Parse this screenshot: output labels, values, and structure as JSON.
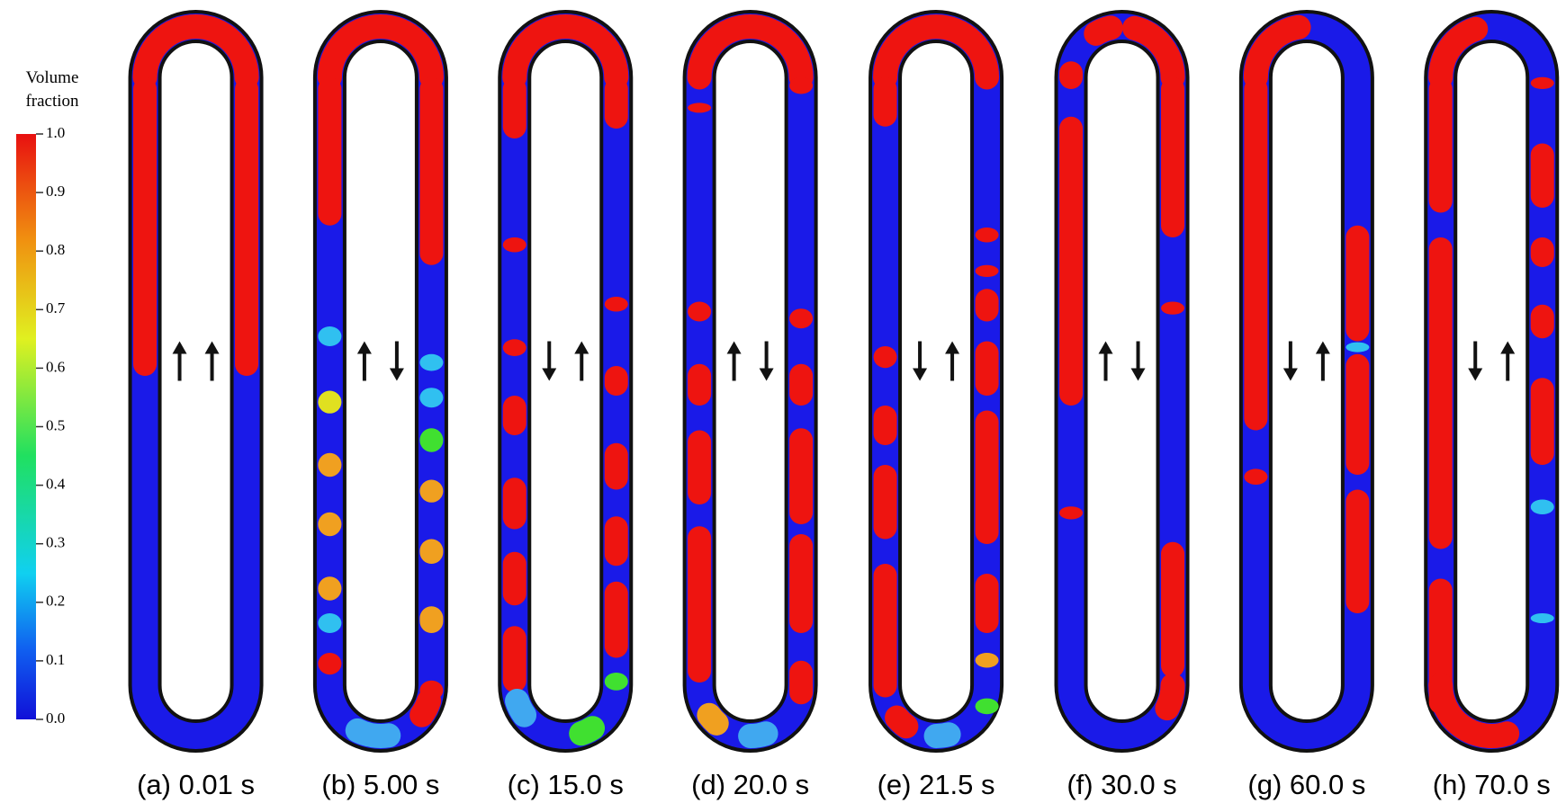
{
  "colorbar": {
    "title": "Volume fraction",
    "lim": [
      0,
      1
    ],
    "ticks": [
      {
        "value": 1,
        "label": "1.0"
      },
      {
        "value": 0.9,
        "label": "0.9"
      },
      {
        "value": 0.8,
        "label": "0.8"
      },
      {
        "value": 0.7,
        "label": "0.7"
      },
      {
        "value": 0.6,
        "label": "0.6"
      },
      {
        "value": 0.5,
        "label": "0.5"
      },
      {
        "value": 0.4,
        "label": "0.4"
      },
      {
        "value": 0.3,
        "label": "0.3"
      },
      {
        "value": 0.2,
        "label": "0.2"
      },
      {
        "value": 0.1,
        "label": "0.1"
      },
      {
        "value": 0,
        "label": "0.0"
      }
    ]
  },
  "panels": [
    {
      "label": "(a) 0.01 s"
    },
    {
      "label": "(b) 5.00 s"
    },
    {
      "label": "(c) 15.0 s"
    },
    {
      "label": "(d) 20.0 s"
    },
    {
      "label": "(e) 21.5 s"
    },
    {
      "label": "(f) 30.0 s"
    },
    {
      "label": "(g) 60.0 s"
    },
    {
      "label": "(h) 70.0 s"
    }
  ]
}
